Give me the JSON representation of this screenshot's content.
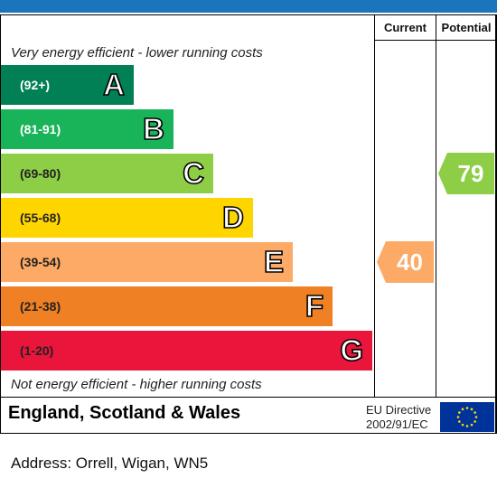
{
  "header": {
    "current_label": "Current",
    "potential_label": "Potential"
  },
  "captions": {
    "top": "Very energy efficient - lower running costs",
    "bottom": "Not energy efficient - higher running costs"
  },
  "chart_data": {
    "type": "bar",
    "categories": [
      "A",
      "B",
      "C",
      "D",
      "E",
      "F",
      "G"
    ],
    "ranges": [
      "(92+)",
      "(81-91)",
      "(69-80)",
      "(55-68)",
      "(39-54)",
      "(21-38)",
      "(1-20)"
    ],
    "colors": [
      "#008054",
      "#19b459",
      "#8dce46",
      "#ffd500",
      "#fcaa65",
      "#ef8023",
      "#e9153b"
    ],
    "range_text_colors": [
      "#ffffff",
      "#ffffff",
      "#222222",
      "#222222",
      "#222222",
      "#222222",
      "#222222"
    ],
    "current": {
      "value": 40,
      "band": "E",
      "color": "#fcaa65"
    },
    "potential": {
      "value": 79,
      "band": "C",
      "color": "#8dce46"
    }
  },
  "footer": {
    "region": "England, Scotland & Wales",
    "directive_line1": "EU Directive",
    "directive_line2": "2002/91/EC",
    "flag_icon": "eu-flag-icon",
    "flag_color": "#003399",
    "star_color": "#ffdd00"
  },
  "address": "Address: Orrell, Wigan, WN5"
}
